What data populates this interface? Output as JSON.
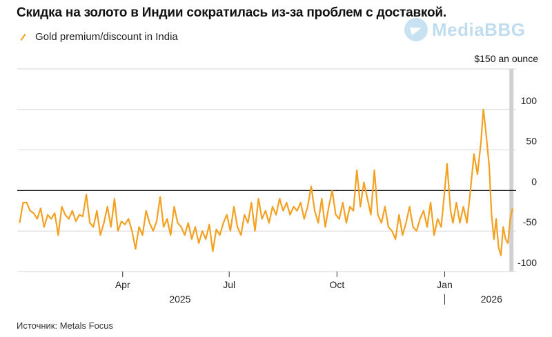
{
  "title": "Скидка на золото в Индии сократилась из-за проблем с доставкой.",
  "legend_label": "Gold premium/discount in India",
  "watermark": "MediaBBG",
  "source": "Источник: Metals Focus",
  "colors": {
    "line": "#f4a020",
    "grid": "#d4d4d4",
    "zero": "#222222",
    "shade": "#d0d0d0"
  },
  "chart_data": {
    "type": "line",
    "title": "Скидка на золото в Индии сократилась из-за проблем с доставкой.",
    "ylabel": "$150 an ounce",
    "ylim": [
      -100,
      150
    ],
    "yticks": [
      100,
      50,
      0,
      -50,
      -100
    ],
    "xlim": [
      "2025-01-01",
      "2026-03-03"
    ],
    "xticks": [
      {
        "date": "2025-04-01",
        "label": "Apr"
      },
      {
        "date": "2025-07-01",
        "label": "Jul"
      },
      {
        "date": "2025-10-01",
        "label": "Oct"
      },
      {
        "date": "2026-01-01",
        "label": "Jan"
      }
    ],
    "year_labels": [
      {
        "date": "2025-05-20",
        "label": "2025"
      },
      {
        "date": "2026-02-10",
        "label": "2026"
      }
    ],
    "year_divider": "2026-01-01",
    "shaded_date": "2026-02-27",
    "grid": true,
    "legend": "top-left",
    "series": [
      {
        "name": "Gold premium/discount in India",
        "points": [
          [
            "2025-01-03",
            -40
          ],
          [
            "2025-01-06",
            -15
          ],
          [
            "2025-01-09",
            -15
          ],
          [
            "2025-01-12",
            -25
          ],
          [
            "2025-01-15",
            -28
          ],
          [
            "2025-01-18",
            -35
          ],
          [
            "2025-01-21",
            -22
          ],
          [
            "2025-01-24",
            -45
          ],
          [
            "2025-01-27",
            -30
          ],
          [
            "2025-01-30",
            -35
          ],
          [
            "2025-02-02",
            -28
          ],
          [
            "2025-02-05",
            -55
          ],
          [
            "2025-02-08",
            -20
          ],
          [
            "2025-02-11",
            -30
          ],
          [
            "2025-02-14",
            -35
          ],
          [
            "2025-02-17",
            -25
          ],
          [
            "2025-02-20",
            -38
          ],
          [
            "2025-02-23",
            -30
          ],
          [
            "2025-02-26",
            -32
          ],
          [
            "2025-03-01",
            -5
          ],
          [
            "2025-03-04",
            -40
          ],
          [
            "2025-03-07",
            -45
          ],
          [
            "2025-03-10",
            -25
          ],
          [
            "2025-03-13",
            -55
          ],
          [
            "2025-03-16",
            -40
          ],
          [
            "2025-03-19",
            -20
          ],
          [
            "2025-03-22",
            -45
          ],
          [
            "2025-03-25",
            -10
          ],
          [
            "2025-03-28",
            -50
          ],
          [
            "2025-03-31",
            -38
          ],
          [
            "2025-04-03",
            -42
          ],
          [
            "2025-04-06",
            -35
          ],
          [
            "2025-04-09",
            -50
          ],
          [
            "2025-04-12",
            -72
          ],
          [
            "2025-04-15",
            -45
          ],
          [
            "2025-04-18",
            -55
          ],
          [
            "2025-04-21",
            -25
          ],
          [
            "2025-04-24",
            -40
          ],
          [
            "2025-04-27",
            -50
          ],
          [
            "2025-04-30",
            -38
          ],
          [
            "2025-05-03",
            -8
          ],
          [
            "2025-05-06",
            -45
          ],
          [
            "2025-05-09",
            -35
          ],
          [
            "2025-05-12",
            -55
          ],
          [
            "2025-05-15",
            -20
          ],
          [
            "2025-05-18",
            -40
          ],
          [
            "2025-05-21",
            -45
          ],
          [
            "2025-05-24",
            -55
          ],
          [
            "2025-05-27",
            -40
          ],
          [
            "2025-05-30",
            -60
          ],
          [
            "2025-06-02",
            -45
          ],
          [
            "2025-06-05",
            -65
          ],
          [
            "2025-06-08",
            -50
          ],
          [
            "2025-06-11",
            -60
          ],
          [
            "2025-06-14",
            -42
          ],
          [
            "2025-06-17",
            -75
          ],
          [
            "2025-06-20",
            -48
          ],
          [
            "2025-06-23",
            -55
          ],
          [
            "2025-06-26",
            -40
          ],
          [
            "2025-06-29",
            -30
          ],
          [
            "2025-07-02",
            -50
          ],
          [
            "2025-07-05",
            -20
          ],
          [
            "2025-07-08",
            -45
          ],
          [
            "2025-07-11",
            -55
          ],
          [
            "2025-07-14",
            -30
          ],
          [
            "2025-07-17",
            -40
          ],
          [
            "2025-07-20",
            -15
          ],
          [
            "2025-07-23",
            -50
          ],
          [
            "2025-07-26",
            -10
          ],
          [
            "2025-07-29",
            -35
          ],
          [
            "2025-08-01",
            -25
          ],
          [
            "2025-08-04",
            -40
          ],
          [
            "2025-08-07",
            -20
          ],
          [
            "2025-08-10",
            -30
          ],
          [
            "2025-08-13",
            -10
          ],
          [
            "2025-08-16",
            -25
          ],
          [
            "2025-08-19",
            -15
          ],
          [
            "2025-08-22",
            -30
          ],
          [
            "2025-08-25",
            -20
          ],
          [
            "2025-08-28",
            -25
          ],
          [
            "2025-08-31",
            -15
          ],
          [
            "2025-09-03",
            -35
          ],
          [
            "2025-09-06",
            -20
          ],
          [
            "2025-09-09",
            5
          ],
          [
            "2025-09-12",
            -25
          ],
          [
            "2025-09-15",
            -40
          ],
          [
            "2025-09-18",
            -10
          ],
          [
            "2025-09-21",
            -45
          ],
          [
            "2025-09-24",
            -20
          ],
          [
            "2025-09-27",
            0
          ],
          [
            "2025-09-30",
            -30
          ],
          [
            "2025-10-03",
            -35
          ],
          [
            "2025-10-06",
            -15
          ],
          [
            "2025-10-09",
            -40
          ],
          [
            "2025-10-12",
            -20
          ],
          [
            "2025-10-15",
            -25
          ],
          [
            "2025-10-18",
            25
          ],
          [
            "2025-10-21",
            -20
          ],
          [
            "2025-10-24",
            10
          ],
          [
            "2025-10-27",
            -10
          ],
          [
            "2025-10-30",
            -30
          ],
          [
            "2025-11-02",
            25
          ],
          [
            "2025-11-05",
            -30
          ],
          [
            "2025-11-08",
            -40
          ],
          [
            "2025-11-11",
            -20
          ],
          [
            "2025-11-14",
            -45
          ],
          [
            "2025-11-17",
            -50
          ],
          [
            "2025-11-20",
            -60
          ],
          [
            "2025-11-23",
            -30
          ],
          [
            "2025-11-26",
            -55
          ],
          [
            "2025-11-29",
            -40
          ],
          [
            "2025-12-02",
            -20
          ],
          [
            "2025-12-05",
            -45
          ],
          [
            "2025-12-08",
            -50
          ],
          [
            "2025-12-11",
            -35
          ],
          [
            "2025-12-14",
            -25
          ],
          [
            "2025-12-17",
            -45
          ],
          [
            "2025-12-20",
            -15
          ],
          [
            "2025-12-23",
            -55
          ],
          [
            "2025-12-26",
            -35
          ],
          [
            "2025-12-29",
            -45
          ],
          [
            "2026-01-01",
            0
          ],
          [
            "2026-01-03",
            33
          ],
          [
            "2026-01-06",
            -25
          ],
          [
            "2026-01-08",
            -40
          ],
          [
            "2026-01-11",
            -15
          ],
          [
            "2026-01-14",
            -40
          ],
          [
            "2026-01-17",
            -20
          ],
          [
            "2026-01-20",
            -40
          ],
          [
            "2026-01-23",
            0
          ],
          [
            "2026-01-26",
            45
          ],
          [
            "2026-01-29",
            20
          ],
          [
            "2026-02-01",
            60
          ],
          [
            "2026-02-03",
            100
          ],
          [
            "2026-02-05",
            75
          ],
          [
            "2026-02-08",
            30
          ],
          [
            "2026-02-10",
            -30
          ],
          [
            "2026-02-12",
            -60
          ],
          [
            "2026-02-14",
            -35
          ],
          [
            "2026-02-16",
            -70
          ],
          [
            "2026-02-18",
            -80
          ],
          [
            "2026-02-20",
            -45
          ],
          [
            "2026-02-22",
            -60
          ],
          [
            "2026-02-24",
            -65
          ],
          [
            "2026-02-26",
            -35
          ],
          [
            "2026-02-28",
            -22
          ]
        ]
      }
    ]
  }
}
